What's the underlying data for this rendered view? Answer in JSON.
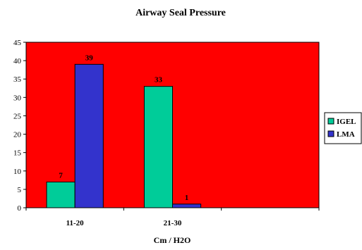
{
  "chart_data": {
    "type": "bar",
    "title": "Airway Seal Pressure",
    "xlabel": "Cm / H2O",
    "ylabel": "",
    "categories": [
      "11-20",
      "21-30",
      ""
    ],
    "series": [
      {
        "name": "IGEL",
        "values": [
          7,
          33,
          null
        ],
        "color": "#00CC99"
      },
      {
        "name": "LMA",
        "values": [
          39,
          1,
          null
        ],
        "color": "#3333CC"
      }
    ],
    "ylim": [
      0,
      45
    ],
    "yticks": [
      0,
      5,
      10,
      15,
      20,
      25,
      30,
      35,
      40,
      45
    ],
    "data_labels": true,
    "grid": false,
    "legend_position": "right",
    "plot_background": "#FF0000"
  }
}
